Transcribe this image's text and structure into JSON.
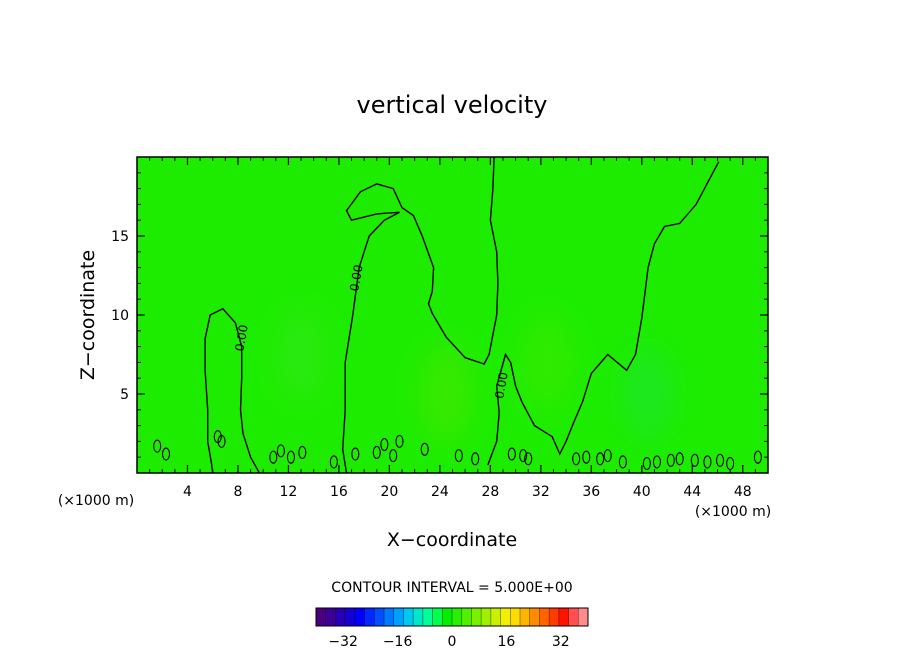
{
  "chart_data": {
    "type": "heatmap",
    "title": "vertical velocity",
    "xlabel": "X−coordinate",
    "ylabel": "Z−coordinate",
    "x_unit": "(×1000 m)",
    "y_unit": "(×1000 m)",
    "xlim": [
      0,
      50
    ],
    "ylim": [
      0,
      20
    ],
    "x_ticks": [
      4,
      8,
      12,
      16,
      20,
      24,
      28,
      32,
      36,
      40,
      44,
      48
    ],
    "y_ticks": [
      5,
      10,
      15
    ],
    "x_tick_labels": [
      "4",
      "8",
      "12",
      "16",
      "20",
      "24",
      "28",
      "32",
      "36",
      "40",
      "44",
      "48"
    ],
    "y_tick_labels": [
      "5",
      "10",
      "15"
    ],
    "field_background_color": "#1dec00",
    "contour_line_color": "#000000",
    "zero_contour_label": "0.00",
    "zero_contours": [
      {
        "label_pos": [
          8.6,
          8.5
        ],
        "points": [
          [
            6.0,
            0.0
          ],
          [
            5.9,
            0.6
          ],
          [
            5.6,
            2.0
          ],
          [
            5.6,
            4.0
          ],
          [
            5.4,
            6.5
          ],
          [
            5.4,
            8.5
          ],
          [
            5.8,
            10.0
          ],
          [
            6.8,
            10.4
          ],
          [
            7.8,
            9.5
          ],
          [
            8.3,
            8.0
          ],
          [
            8.3,
            6.0
          ],
          [
            8.2,
            4.0
          ],
          [
            8.4,
            2.5
          ],
          [
            9.0,
            1.0
          ],
          [
            9.7,
            0.0
          ]
        ]
      },
      {
        "label_pos": [
          17.7,
          12.3
        ],
        "points": [
          [
            16.6,
            0.0
          ],
          [
            16.3,
            1.5
          ],
          [
            16.5,
            4.0
          ],
          [
            16.5,
            7.0
          ],
          [
            17.1,
            10.0
          ],
          [
            17.6,
            13.0
          ],
          [
            18.4,
            15.0
          ],
          [
            19.6,
            16.0
          ],
          [
            20.8,
            16.5
          ],
          [
            19.0,
            16.4
          ],
          [
            17.0,
            16.0
          ],
          [
            16.6,
            16.6
          ],
          [
            17.7,
            17.8
          ],
          [
            19.0,
            18.3
          ],
          [
            20.3,
            18.0
          ],
          [
            21.0,
            16.8
          ],
          [
            21.9,
            16.3
          ],
          [
            22.6,
            15.0
          ],
          [
            23.5,
            13.0
          ],
          [
            23.4,
            11.5
          ],
          [
            23.1,
            10.7
          ],
          [
            23.4,
            10.1
          ],
          [
            24.5,
            8.6
          ],
          [
            26.0,
            7.3
          ],
          [
            27.5,
            6.9
          ],
          [
            27.9,
            7.5
          ],
          [
            28.5,
            10.0
          ],
          [
            28.6,
            12.0
          ],
          [
            28.5,
            14.0
          ],
          [
            28.0,
            16.0
          ],
          [
            28.2,
            18.0
          ],
          [
            28.3,
            20.0
          ]
        ]
      },
      {
        "label_pos": [
          29.2,
          5.5
        ],
        "points": [
          [
            27.8,
            0.5
          ],
          [
            28.5,
            2.0
          ],
          [
            28.7,
            3.8
          ],
          [
            28.5,
            5.5
          ],
          [
            29.2,
            7.5
          ],
          [
            29.6,
            7.0
          ],
          [
            30.0,
            5.5
          ],
          [
            30.5,
            4.5
          ],
          [
            31.5,
            3.0
          ],
          [
            32.9,
            2.3
          ],
          [
            33.5,
            1.2
          ],
          [
            34.0,
            2.0
          ],
          [
            34.5,
            3.0
          ],
          [
            35.3,
            4.5
          ],
          [
            36.0,
            6.3
          ],
          [
            37.3,
            7.5
          ],
          [
            38.8,
            6.5
          ],
          [
            39.5,
            7.5
          ],
          [
            40.0,
            9.8
          ],
          [
            40.5,
            13.0
          ],
          [
            41.0,
            14.5
          ],
          [
            41.8,
            15.6
          ],
          [
            43.0,
            15.8
          ],
          [
            44.3,
            17.0
          ],
          [
            45.7,
            19.1
          ],
          [
            46.1,
            19.7
          ]
        ]
      }
    ],
    "small_contour_loops": [
      [
        1.6,
        1.7
      ],
      [
        2.3,
        1.2
      ],
      [
        6.4,
        2.3
      ],
      [
        6.7,
        2.0
      ],
      [
        10.8,
        1.0
      ],
      [
        11.4,
        1.4
      ],
      [
        12.2,
        1.0
      ],
      [
        13.1,
        1.3
      ],
      [
        15.6,
        0.7
      ],
      [
        17.3,
        1.2
      ],
      [
        19.0,
        1.3
      ],
      [
        19.6,
        1.8
      ],
      [
        20.3,
        1.1
      ],
      [
        20.8,
        2.0
      ],
      [
        22.8,
        1.5
      ],
      [
        25.5,
        1.1
      ],
      [
        26.8,
        0.9
      ],
      [
        29.7,
        1.2
      ],
      [
        30.6,
        1.1
      ],
      [
        31.0,
        0.9
      ],
      [
        34.8,
        0.9
      ],
      [
        35.6,
        1.0
      ],
      [
        36.7,
        0.9
      ],
      [
        37.3,
        1.1
      ],
      [
        38.5,
        0.7
      ],
      [
        40.4,
        0.6
      ],
      [
        41.2,
        0.7
      ],
      [
        42.3,
        0.8
      ],
      [
        43.0,
        0.9
      ],
      [
        44.2,
        0.8
      ],
      [
        45.2,
        0.7
      ],
      [
        46.2,
        0.8
      ],
      [
        47.0,
        0.6
      ],
      [
        49.2,
        1.0
      ]
    ],
    "faint_anomalies": [
      {
        "center": [
          13.0,
          7.5
        ],
        "color": "#34e71a"
      },
      {
        "center": [
          24.5,
          5.0
        ],
        "color": "#4fe600"
      },
      {
        "center": [
          32.5,
          7.0
        ],
        "color": "#3fe900"
      },
      {
        "center": [
          40.5,
          5.0
        ],
        "color": "#1de43a"
      }
    ],
    "colorbar": {
      "title": "CONTOUR INTERVAL = 5.000E+00",
      "tick_values": [
        -32,
        -16,
        0,
        16,
        32
      ],
      "tick_labels": [
        "−32",
        "−16",
        "0",
        "16",
        "32"
      ],
      "range": [
        -40,
        40
      ],
      "colors": [
        "#4b0082",
        "#3c0096",
        "#2800b4",
        "#1400d2",
        "#0000ff",
        "#0028ff",
        "#0050ff",
        "#0078ff",
        "#00a0ff",
        "#00c8f0",
        "#00e6c8",
        "#00ff96",
        "#00ff50",
        "#00f000",
        "#28f000",
        "#50f000",
        "#78f000",
        "#a0f000",
        "#c8f000",
        "#f0f000",
        "#ffdc00",
        "#ffb400",
        "#ff8c00",
        "#ff6400",
        "#ff3c00",
        "#ff1400",
        "#ff5050",
        "#ff8c8c"
      ]
    }
  }
}
